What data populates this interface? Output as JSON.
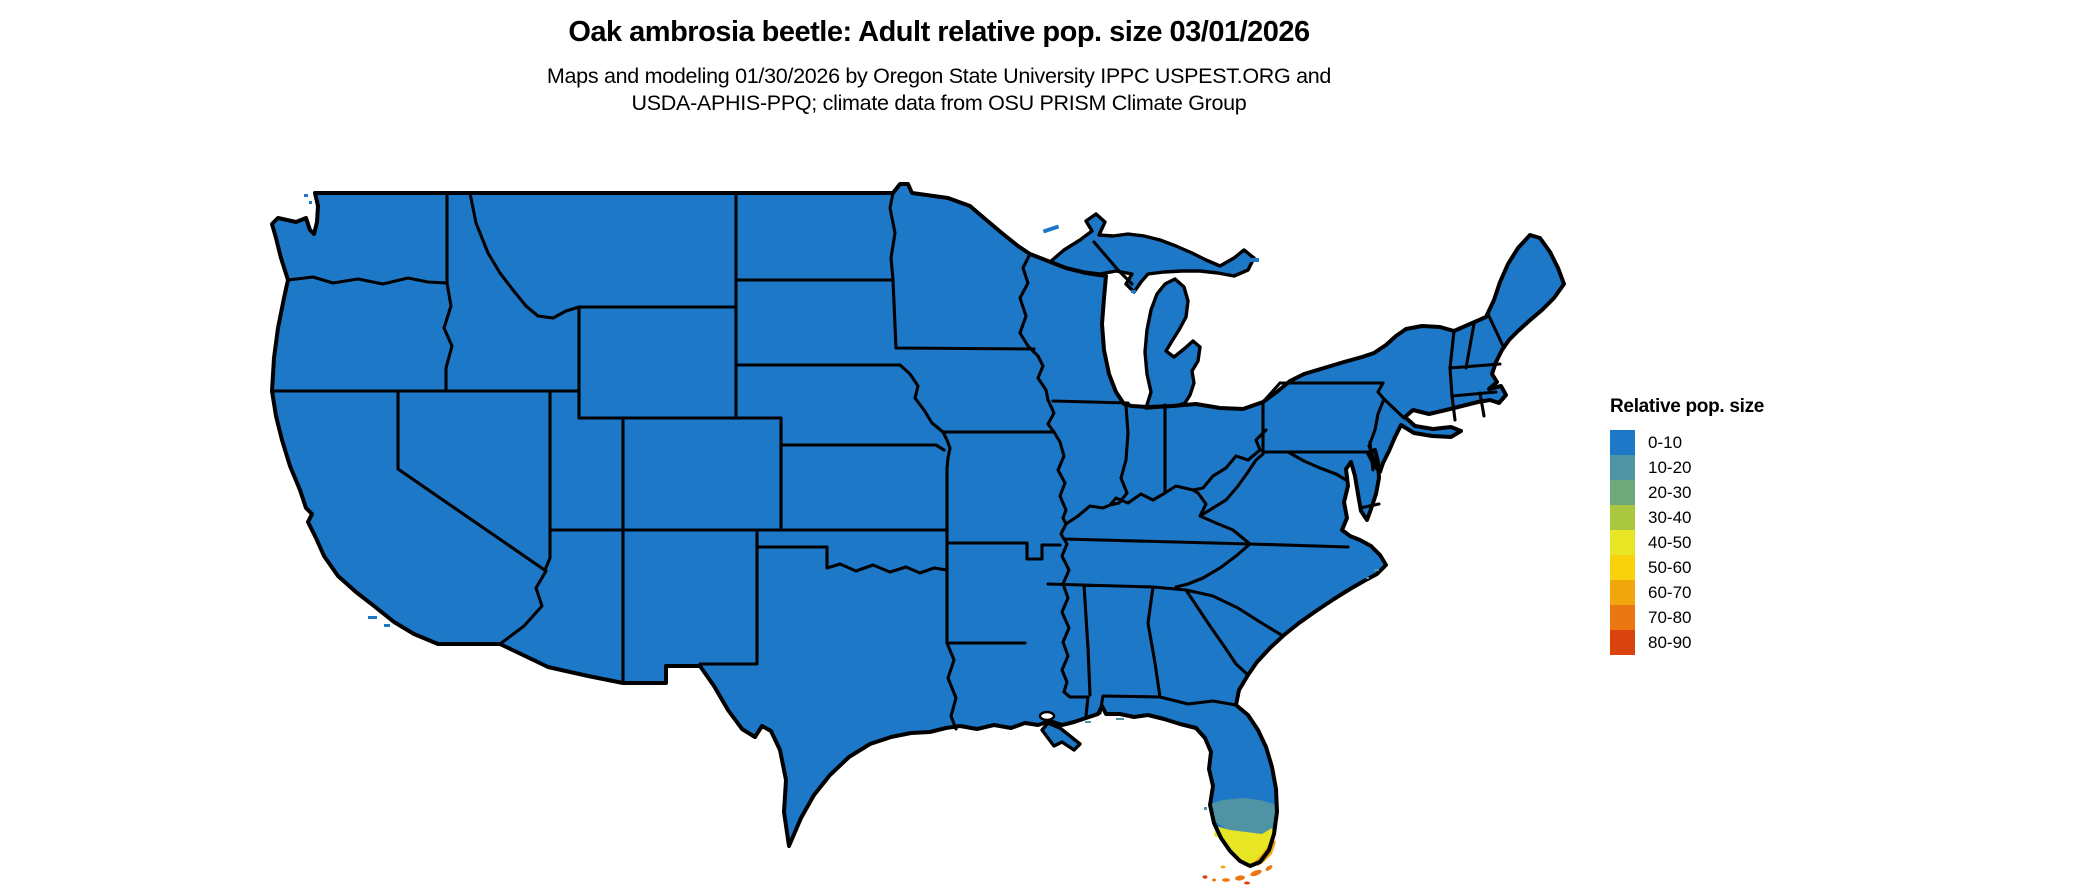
{
  "header": {
    "title": "Oak ambrosia beetle: Adult relative pop. size 03/01/2026",
    "subtitle_line1": "Maps and modeling 01/30/2026 by Oregon State University IPPC USPEST.ORG and",
    "subtitle_line2": "USDA-APHIS-PPQ; climate data from OSU PRISM Climate Group"
  },
  "legend": {
    "title": "Relative pop. size",
    "classes": [
      {
        "label": "0-10",
        "color": "#1e78c8"
      },
      {
        "label": "10-20",
        "color": "#4f94a5"
      },
      {
        "label": "20-30",
        "color": "#6fa97b"
      },
      {
        "label": "30-40",
        "color": "#a9c83f"
      },
      {
        "label": "40-50",
        "color": "#e8e525"
      },
      {
        "label": "50-60",
        "color": "#f9d20e"
      },
      {
        "label": "60-70",
        "color": "#f2a60d"
      },
      {
        "label": "70-80",
        "color": "#ea7712"
      },
      {
        "label": "80-90",
        "color": "#d8430e"
      }
    ]
  },
  "map": {
    "type": "us-states-choropleth",
    "background_color": "#ffffff",
    "state_border_color": "#000000",
    "regions": [
      {
        "name": "Continental United States (nearly all states)",
        "value": "0-10"
      },
      {
        "name": "South Florida inland band",
        "value": "10-20"
      },
      {
        "name": "Southern Florida tip",
        "value": "40-50"
      },
      {
        "name": "Southeast Florida coastal fringe",
        "value": "60-70"
      },
      {
        "name": "Florida Keys",
        "value": "70-80"
      },
      {
        "name": "Florida Keys scattered islets",
        "value": "80-90"
      }
    ]
  }
}
